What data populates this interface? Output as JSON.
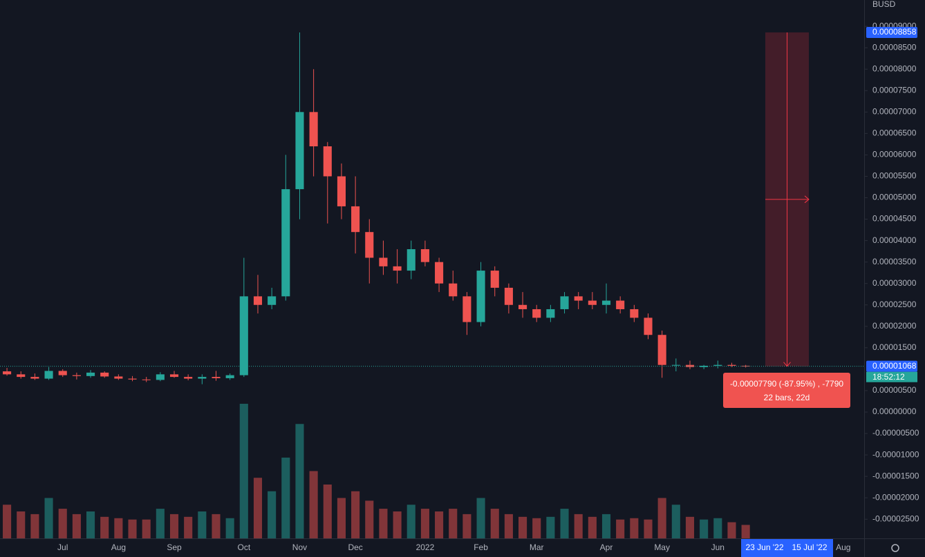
{
  "chart_data": {
    "type": "candlestick",
    "axis_unit": "BUSD",
    "categories": [
      null,
      null,
      null,
      null,
      "Jul",
      null,
      null,
      null,
      "Aug",
      null,
      null,
      null,
      "Sep",
      null,
      null,
      null,
      null,
      "Oct",
      null,
      null,
      null,
      "Nov",
      null,
      null,
      null,
      "Dec",
      null,
      null,
      null,
      null,
      "2022",
      null,
      null,
      null,
      "Feb",
      null,
      null,
      null,
      "Mar",
      null,
      null,
      null,
      null,
      "Apr",
      null,
      null,
      null,
      "May",
      null,
      null,
      null,
      "Jun",
      null,
      null,
      null,
      null,
      null,
      null,
      null,
      null,
      "Aug",
      null
    ],
    "open": [
      9.5e-06,
      8.8e-06,
      8.2e-06,
      7.8e-06,
      9.6e-06,
      8.6e-06,
      8.4e-06,
      9.2e-06,
      8.3e-06,
      7.8e-06,
      7.6e-06,
      7.5e-06,
      8.8e-06,
      8.2e-06,
      7.8e-06,
      8.2e-06,
      7.9e-06,
      8.6e-06,
      2.7e-05,
      2.5e-05,
      2.7e-05,
      5.2e-05,
      7e-05,
      6.2e-05,
      5.5e-05,
      4.8e-05,
      4.2e-05,
      3.6e-05,
      3.4e-05,
      3.3e-05,
      3.8e-05,
      3.5e-05,
      3e-05,
      2.7e-05,
      2.1e-05,
      3.3e-05,
      2.9e-05,
      2.5e-05,
      2.4e-05,
      2.2e-05,
      2.4e-05,
      2.7e-05,
      2.6e-05,
      2.5e-05,
      2.6e-05,
      2.4e-05,
      2.2e-05,
      1.8e-05,
      1.1e-05,
      1.1e-05,
      1.05e-05,
      1.08e-05,
      1.1e-05,
      1.08e-05,
      null,
      null,
      null,
      null,
      null,
      null,
      null,
      null
    ],
    "high": [
      1.03e-05,
      9.5e-06,
      9e-06,
      1.05e-05,
      1e-05,
      9.2e-06,
      9.8e-06,
      9.5e-06,
      8.8e-06,
      8.4e-06,
      8.2e-06,
      9.3e-06,
      9.6e-06,
      8.8e-06,
      8.8e-06,
      9.6e-06,
      9e-06,
      3.6e-05,
      3.2e-05,
      2.9e-05,
      6e-05,
      8.858e-05,
      8e-05,
      6.3e-05,
      5.8e-05,
      5.5e-05,
      4.5e-05,
      4e-05,
      3.8e-05,
      4e-05,
      4e-05,
      3.6e-05,
      3.3e-05,
      2.8e-05,
      3.5e-05,
      3.4e-05,
      3e-05,
      2.8e-05,
      2.5e-05,
      2.5e-05,
      2.8e-05,
      2.8e-05,
      2.8e-05,
      3e-05,
      2.7e-05,
      2.5e-05,
      2.3e-05,
      1.9e-05,
      1.25e-05,
      1.2e-05,
      1.1e-05,
      1.2e-05,
      1.15e-05,
      1.1e-05,
      null,
      null,
      null,
      null,
      null,
      null,
      null,
      null
    ],
    "low": [
      8.5e-06,
      7.8e-06,
      7.5e-06,
      7.5e-06,
      8.2e-06,
      7.6e-06,
      8e-06,
      8e-06,
      7.5e-06,
      7.2e-06,
      7e-06,
      7.2e-06,
      8e-06,
      7.4e-06,
      6.5e-06,
      7.3e-06,
      7.5e-06,
      8.2e-06,
      2.3e-05,
      2.4e-05,
      2.6e-05,
      4.5e-05,
      5.5e-05,
      4.4e-05,
      4.5e-05,
      3.7e-05,
      3e-05,
      3.2e-05,
      3e-05,
      3.1e-05,
      3.4e-05,
      2.8e-05,
      2.6e-05,
      1.8e-05,
      2e-05,
      2.7e-05,
      2.3e-05,
      2.2e-05,
      2.1e-05,
      2.1e-05,
      2.3e-05,
      2.4e-05,
      2.4e-05,
      2.3e-05,
      2.3e-05,
      2.1e-05,
      1.7e-05,
      8e-06,
      9.5e-06,
      1e-05,
      1e-05,
      1.02e-05,
      1.05e-05,
      1.04e-05,
      null,
      null,
      null,
      null,
      null,
      null,
      null,
      null
    ],
    "close": [
      8.8e-06,
      8.2e-06,
      7.8e-06,
      9.6e-06,
      8.6e-06,
      8.4e-06,
      9.2e-06,
      8.3e-06,
      7.8e-06,
      7.6e-06,
      7.5e-06,
      8.8e-06,
      8.2e-06,
      7.8e-06,
      8.2e-06,
      7.9e-06,
      8.6e-06,
      2.7e-05,
      2.5e-05,
      2.7e-05,
      5.2e-05,
      7e-05,
      6.2e-05,
      5.5e-05,
      4.8e-05,
      4.2e-05,
      3.6e-05,
      3.4e-05,
      3.3e-05,
      3.8e-05,
      3.5e-05,
      3e-05,
      2.7e-05,
      2.1e-05,
      3.3e-05,
      2.9e-05,
      2.5e-05,
      2.4e-05,
      2.2e-05,
      2.4e-05,
      2.7e-05,
      2.6e-05,
      2.5e-05,
      2.6e-05,
      2.4e-05,
      2.2e-05,
      1.8e-05,
      1.1e-05,
      1.1e-05,
      1.05e-05,
      1.08e-05,
      1.1e-05,
      1.08e-05,
      1.068e-05,
      null,
      null,
      null,
      null,
      null,
      null,
      null,
      null
    ],
    "volume": [
      25,
      20,
      18,
      30,
      22,
      18,
      20,
      16,
      15,
      14,
      14,
      22,
      18,
      16,
      20,
      18,
      15,
      100,
      45,
      35,
      60,
      85,
      50,
      40,
      30,
      35,
      28,
      22,
      20,
      25,
      22,
      20,
      22,
      18,
      30,
      22,
      18,
      16,
      15,
      16,
      22,
      18,
      16,
      18,
      14,
      15,
      14,
      30,
      25,
      16,
      14,
      15,
      12,
      10,
      null,
      null,
      null,
      null,
      null,
      null,
      null,
      null
    ],
    "up_color": "#26a69a",
    "down_color": "#ef5350",
    "ylim": [
      -2.947e-05,
      9.614e-05
    ],
    "yticks": [
      {
        "value": 9e-05,
        "label": "0.00009000"
      },
      {
        "value": 8.5e-05,
        "label": "0.00008500"
      },
      {
        "value": 8e-05,
        "label": "0.00008000"
      },
      {
        "value": 7.5e-05,
        "label": "0.00007500"
      },
      {
        "value": 7e-05,
        "label": "0.00007000"
      },
      {
        "value": 6.5e-05,
        "label": "0.00006500"
      },
      {
        "value": 6e-05,
        "label": "0.00006000"
      },
      {
        "value": 5.5e-05,
        "label": "0.00005500"
      },
      {
        "value": 5e-05,
        "label": "0.00005000"
      },
      {
        "value": 4.5e-05,
        "label": "0.00004500"
      },
      {
        "value": 4e-05,
        "label": "0.00004000"
      },
      {
        "value": 3.5e-05,
        "label": "0.00003500"
      },
      {
        "value": 3e-05,
        "label": "0.00003000"
      },
      {
        "value": 2.5e-05,
        "label": "0.00002500"
      },
      {
        "value": 2e-05,
        "label": "0.00002000"
      },
      {
        "value": 1.5e-05,
        "label": "0.00001500"
      },
      {
        "value": 5e-06,
        "label": "0.00000500"
      },
      {
        "value": 0,
        "label": "0.00000000"
      },
      {
        "value": -5e-06,
        "label": "-0.00000500"
      },
      {
        "value": -1e-05,
        "label": "-0.00001000"
      },
      {
        "value": -1.5e-05,
        "label": "-0.00001500"
      },
      {
        "value": -2e-05,
        "label": "-0.00002000"
      },
      {
        "value": -2.5e-05,
        "label": "-0.00002500"
      }
    ],
    "grid": false,
    "last_price": {
      "value": 1.068e-05,
      "label": "0.00001068"
    },
    "countdown": "18:52:12",
    "measure": {
      "from": {
        "value": 8.858e-05,
        "label": "0.00008858"
      },
      "text": [
        "-0.00007790 (-87.95%) , -7790",
        "22 bars, 22d"
      ],
      "range_labels": [
        "23 Jun '22",
        "15 Jul '22"
      ]
    }
  }
}
